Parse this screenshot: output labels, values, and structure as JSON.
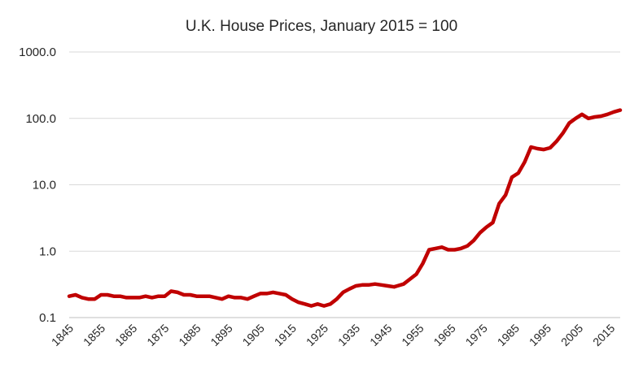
{
  "chart_data": {
    "type": "line",
    "title": "U.K. House Prices, January 2015 = 100",
    "xlabel": "",
    "ylabel": "",
    "yscale": "log",
    "ylim": [
      0.1,
      1000
    ],
    "xlim": [
      1845,
      2018
    ],
    "grid": true,
    "legend": "none",
    "y_ticks": [
      "1000.0",
      "100.0",
      "10.0",
      "1.0",
      "0.1"
    ],
    "x_ticks": [
      "1845",
      "1855",
      "1865",
      "1875",
      "1885",
      "1895",
      "1905",
      "1915",
      "1925",
      "1935",
      "1945",
      "1955",
      "1965",
      "1975",
      "1985",
      "1995",
      "2005",
      "2015"
    ],
    "series": [
      {
        "color": "#c00000",
        "x": [
          1845,
          1847,
          1849,
          1851,
          1853,
          1855,
          1857,
          1859,
          1861,
          1863,
          1865,
          1867,
          1869,
          1871,
          1873,
          1875,
          1877,
          1879,
          1881,
          1883,
          1885,
          1887,
          1889,
          1891,
          1893,
          1895,
          1897,
          1899,
          1901,
          1903,
          1905,
          1907,
          1909,
          1911,
          1913,
          1915,
          1917,
          1919,
          1921,
          1923,
          1925,
          1927,
          1929,
          1931,
          1933,
          1935,
          1937,
          1939,
          1941,
          1943,
          1945,
          1947,
          1948,
          1950,
          1952,
          1954,
          1956,
          1958,
          1960,
          1962,
          1964,
          1966,
          1968,
          1970,
          1972,
          1974,
          1976,
          1978,
          1980,
          1982,
          1984,
          1986,
          1988,
          1990,
          1992,
          1994,
          1996,
          1998,
          2000,
          2002,
          2004,
          2006,
          2008,
          2010,
          2012,
          2014,
          2016,
          2018
        ],
        "y": [
          0.21,
          0.22,
          0.2,
          0.19,
          0.19,
          0.22,
          0.22,
          0.21,
          0.21,
          0.2,
          0.2,
          0.2,
          0.21,
          0.2,
          0.21,
          0.21,
          0.25,
          0.24,
          0.22,
          0.22,
          0.21,
          0.21,
          0.21,
          0.2,
          0.19,
          0.21,
          0.2,
          0.2,
          0.19,
          0.21,
          0.23,
          0.23,
          0.24,
          0.23,
          0.22,
          0.19,
          0.17,
          0.16,
          0.15,
          0.16,
          0.15,
          0.16,
          0.19,
          0.24,
          0.27,
          0.3,
          0.31,
          0.31,
          0.32,
          0.31,
          0.3,
          0.29,
          0.3,
          0.32,
          0.38,
          0.45,
          0.65,
          1.05,
          1.1,
          1.15,
          1.05,
          1.05,
          1.1,
          1.2,
          1.45,
          1.9,
          2.3,
          2.7,
          5.2,
          7.0,
          13.0,
          15.0,
          22.0,
          37.0,
          35.0,
          34.0,
          36.0,
          45.0,
          60.0,
          85.0,
          100.0,
          115.0,
          100.0,
          105.0,
          108.0,
          115.0,
          125.0,
          133.0
        ]
      }
    ]
  }
}
